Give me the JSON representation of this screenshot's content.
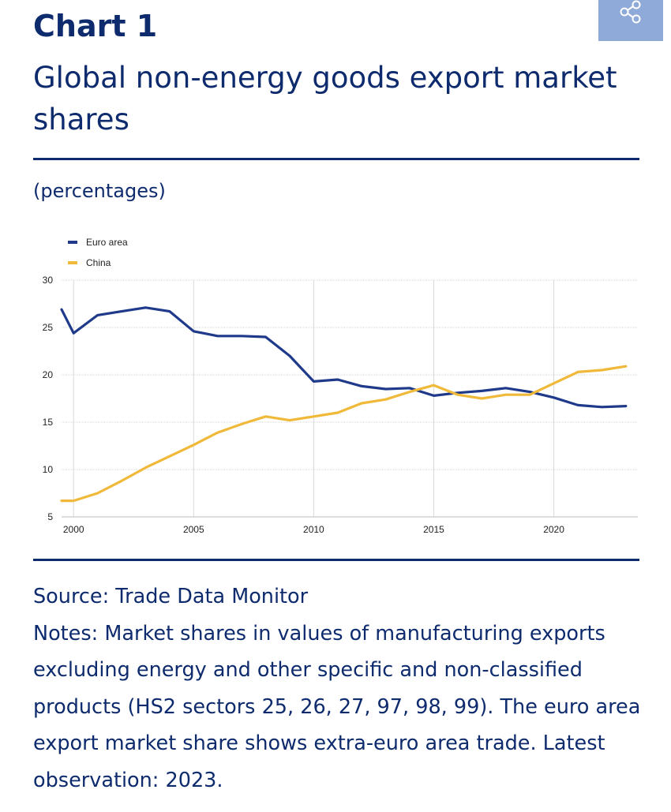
{
  "header": {
    "chart_number": "Chart 1",
    "title": "Global non-energy goods export market shares",
    "share_icon": "share-icon"
  },
  "unit_note": "(percentages)",
  "footer": {
    "source": "Source: Trade Data Monitor",
    "notes": "Notes: Market shares in values of manufacturing exports excluding energy and other specific and non-classified products (HS2 sectors 25, 26, 27, 97, 98, 99). The euro area export market share shows extra-euro area trade. Latest observation: 2023."
  },
  "colors": {
    "euro_area": "#1f3a8a",
    "china": "#f0b93a",
    "text_dark": "#0e2b6e",
    "share_bg": "#8fa9d8"
  },
  "chart_data": {
    "type": "line",
    "ylim": [
      5,
      30
    ],
    "xlim": [
      1999.5,
      2023.5
    ],
    "yticks": [
      5,
      10,
      15,
      20,
      25,
      30
    ],
    "xticks": [
      2000,
      2005,
      2010,
      2015,
      2020
    ],
    "grid": true,
    "legend_position": "top-left",
    "series": [
      {
        "name": "Euro area",
        "color": "#1f3a8a",
        "points": [
          [
            1999.5,
            26.9
          ],
          [
            2000,
            24.4
          ],
          [
            2001,
            26.3
          ],
          [
            2002,
            26.7
          ],
          [
            2003,
            27.1
          ],
          [
            2004,
            26.7
          ],
          [
            2005,
            24.6
          ],
          [
            2006,
            24.1
          ],
          [
            2007,
            24.1
          ],
          [
            2008,
            24.0
          ],
          [
            2009,
            22.0
          ],
          [
            2010,
            19.3
          ],
          [
            2011,
            19.5
          ],
          [
            2012,
            18.8
          ],
          [
            2013,
            18.5
          ],
          [
            2014,
            18.6
          ],
          [
            2015,
            17.8
          ],
          [
            2016,
            18.1
          ],
          [
            2017,
            18.3
          ],
          [
            2018,
            18.6
          ],
          [
            2019,
            18.2
          ],
          [
            2020,
            17.6
          ],
          [
            2021,
            16.8
          ],
          [
            2022,
            16.6
          ],
          [
            2023,
            16.7
          ]
        ]
      },
      {
        "name": "China",
        "color": "#f0b93a",
        "points": [
          [
            1999.5,
            6.7
          ],
          [
            2000,
            6.7
          ],
          [
            2001,
            7.5
          ],
          [
            2002,
            8.8
          ],
          [
            2003,
            10.2
          ],
          [
            2004,
            11.4
          ],
          [
            2005,
            12.6
          ],
          [
            2006,
            13.9
          ],
          [
            2007,
            14.8
          ],
          [
            2008,
            15.6
          ],
          [
            2009,
            15.2
          ],
          [
            2010,
            15.6
          ],
          [
            2011,
            16.0
          ],
          [
            2012,
            17.0
          ],
          [
            2013,
            17.4
          ],
          [
            2014,
            18.2
          ],
          [
            2015,
            18.9
          ],
          [
            2016,
            17.9
          ],
          [
            2017,
            17.5
          ],
          [
            2018,
            17.9
          ],
          [
            2019,
            17.9
          ],
          [
            2020,
            19.1
          ],
          [
            2021,
            20.3
          ],
          [
            2022,
            20.5
          ],
          [
            2023,
            20.9
          ]
        ]
      }
    ]
  }
}
